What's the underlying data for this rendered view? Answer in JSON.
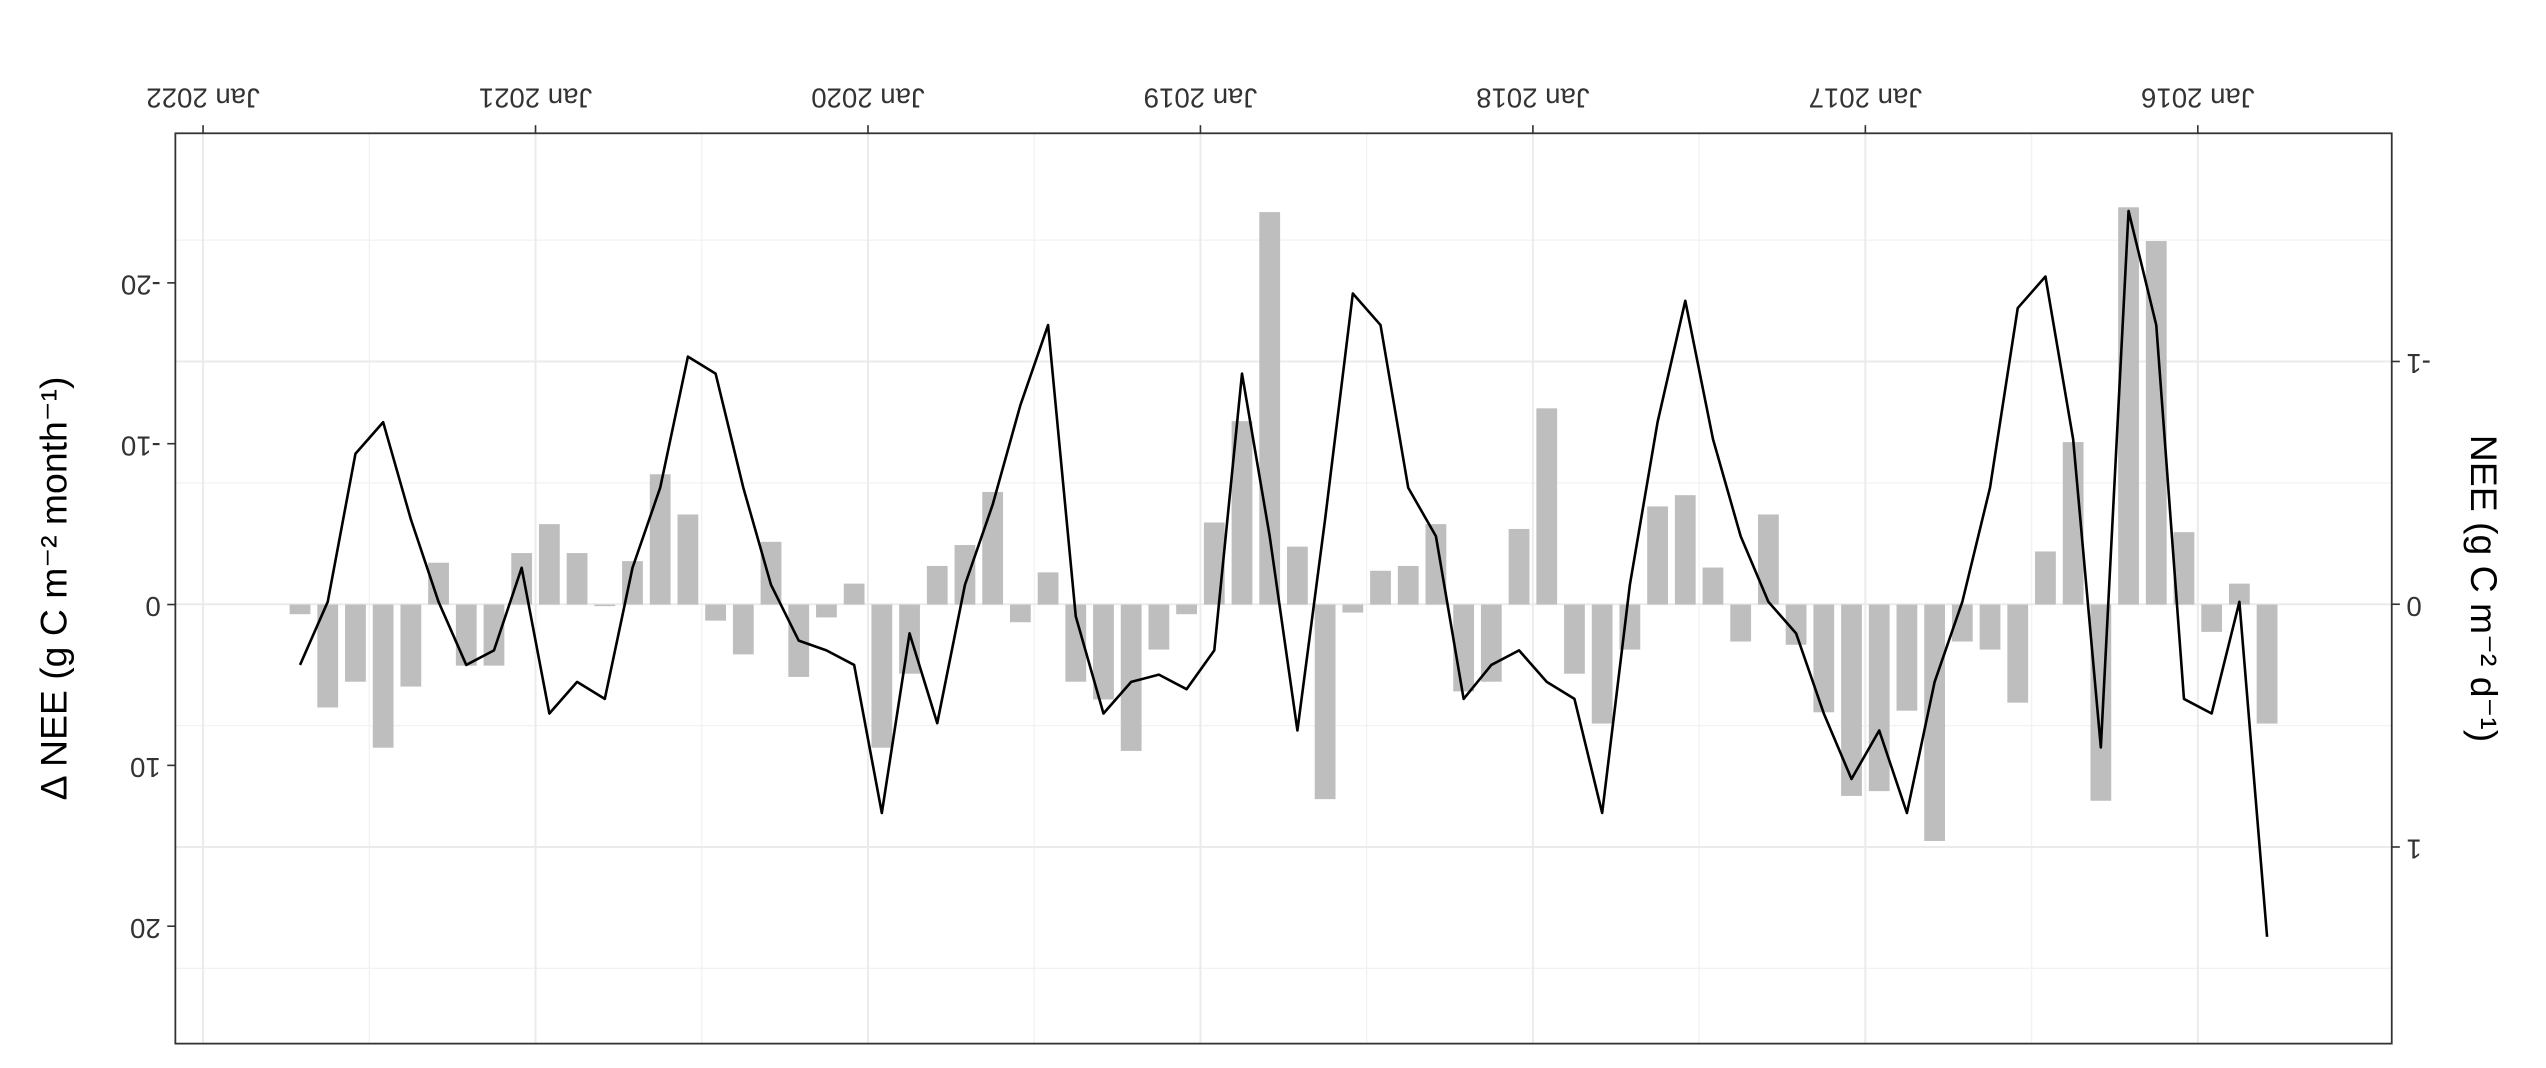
{
  "chart_data": {
    "type": "combo",
    "ylabel": "NEE (g C m⁻² d⁻¹)",
    "y2label": "Δ NEE (g C m⁻² month⁻¹)",
    "x": [
      "2015-10",
      "2015-11",
      "2015-12",
      "2016-01",
      "2016-02",
      "2016-03",
      "2016-04",
      "2016-05",
      "2016-06",
      "2016-07",
      "2016-08",
      "2016-09",
      "2016-10",
      "2016-11",
      "2016-12",
      "2017-01",
      "2017-02",
      "2017-03",
      "2017-04",
      "2017-05",
      "2017-06",
      "2017-07",
      "2017-08",
      "2017-09",
      "2017-10",
      "2017-11",
      "2017-12",
      "2018-01",
      "2018-02",
      "2018-03",
      "2018-04",
      "2018-05",
      "2018-06",
      "2018-07",
      "2018-08",
      "2018-09",
      "2018-10",
      "2018-11",
      "2018-12",
      "2019-01",
      "2019-02",
      "2019-03",
      "2019-04",
      "2019-05",
      "2019-06",
      "2019-07",
      "2019-08",
      "2019-09",
      "2019-10",
      "2019-11",
      "2019-12",
      "2020-01",
      "2020-02",
      "2020-03",
      "2020-04",
      "2020-05",
      "2020-06",
      "2020-07",
      "2020-08",
      "2020-09",
      "2020-10",
      "2020-11",
      "2020-12",
      "2021-01",
      "2021-02",
      "2021-03",
      "2021-04",
      "2021-05",
      "2021-06",
      "2021-07",
      "2021-08",
      "2021-09"
    ],
    "xlim": [
      "2015-06",
      "2022-02"
    ],
    "xticks": [
      {
        "value": "2016-01",
        "label": "Jan 2016"
      },
      {
        "value": "2017-01",
        "label": "Jan 2017"
      },
      {
        "value": "2018-01",
        "label": "Jan 2018"
      },
      {
        "value": "2019-01",
        "label": "Jan 2019"
      },
      {
        "value": "2020-01",
        "label": "Jan 2020"
      },
      {
        "value": "2021-01",
        "label": "Jan 2021"
      },
      {
        "value": "2022-01",
        "label": "Jan 2022"
      }
    ],
    "ylim": [
      -1.94,
      1.81
    ],
    "yticks": [
      -1,
      0,
      1
    ],
    "y2lim": [
      -29.3,
      27.3
    ],
    "y2ticks": [
      -20,
      -10,
      0,
      10,
      20
    ],
    "grid": true,
    "series": [
      {
        "type": "bar",
        "axis": "y2",
        "color": "#bebebe",
        "values": [
          7.4,
          -1.3,
          1.7,
          -4.5,
          -22.6,
          -24.7,
          12.2,
          -10.1,
          -3.3,
          6.1,
          2.8,
          2.3,
          14.7,
          6.6,
          11.6,
          11.9,
          6.7,
          2.5,
          -5.6,
          2.3,
          -2.3,
          -6.8,
          -6.1,
          2.8,
          7.4,
          4.3,
          -12.2,
          -4.7,
          4.8,
          5.4,
          -5,
          -2.4,
          -2.1,
          0.5,
          12.1,
          -3.6,
          -24.4,
          -11.4,
          -5.1,
          0.6,
          2.8,
          9.1,
          5.9,
          4.8,
          -2,
          1.1,
          -7,
          -3.7,
          -2.4,
          4.3,
          8.9,
          -1.3,
          0.8,
          4.5,
          -3.9,
          3.1,
          1,
          -5.6,
          -8.1,
          -2.7,
          0.1,
          -3.2,
          -5,
          -3.2,
          3.8,
          3.8,
          -2.6,
          5.1,
          8.9,
          4.8,
          6.4,
          0.6
        ]
      },
      {
        "type": "line",
        "color": "#000000",
        "values": [
          1.37,
          -0.01,
          0.45,
          0.39,
          -1.15,
          -1.62,
          0.59,
          -0.68,
          -1.35,
          -1.22,
          -0.48,
          -0.01,
          0.32,
          0.86,
          0.52,
          0.72,
          0.45,
          0.12,
          -0.01,
          -0.28,
          -0.68,
          -1.25,
          -0.75,
          -0.08,
          0.86,
          0.39,
          0.32,
          0.19,
          0.25,
          0.39,
          -0.28,
          -0.48,
          -1.15,
          -1.28,
          -0.35,
          0.52,
          -0.28,
          -0.95,
          0.19,
          0.35,
          0.29,
          0.32,
          0.45,
          0.05,
          -1.15,
          -0.82,
          -0.41,
          -0.08,
          0.49,
          0.12,
          0.86,
          0.25,
          0.19,
          0.15,
          -0.08,
          -0.48,
          -0.95,
          -1.02,
          -0.48,
          -0.15,
          0.39,
          0.32,
          0.45,
          -0.15,
          0.19,
          0.25,
          -0.01,
          -0.35,
          -0.75,
          -0.62,
          -0.01,
          0.25
        ]
      }
    ]
  }
}
